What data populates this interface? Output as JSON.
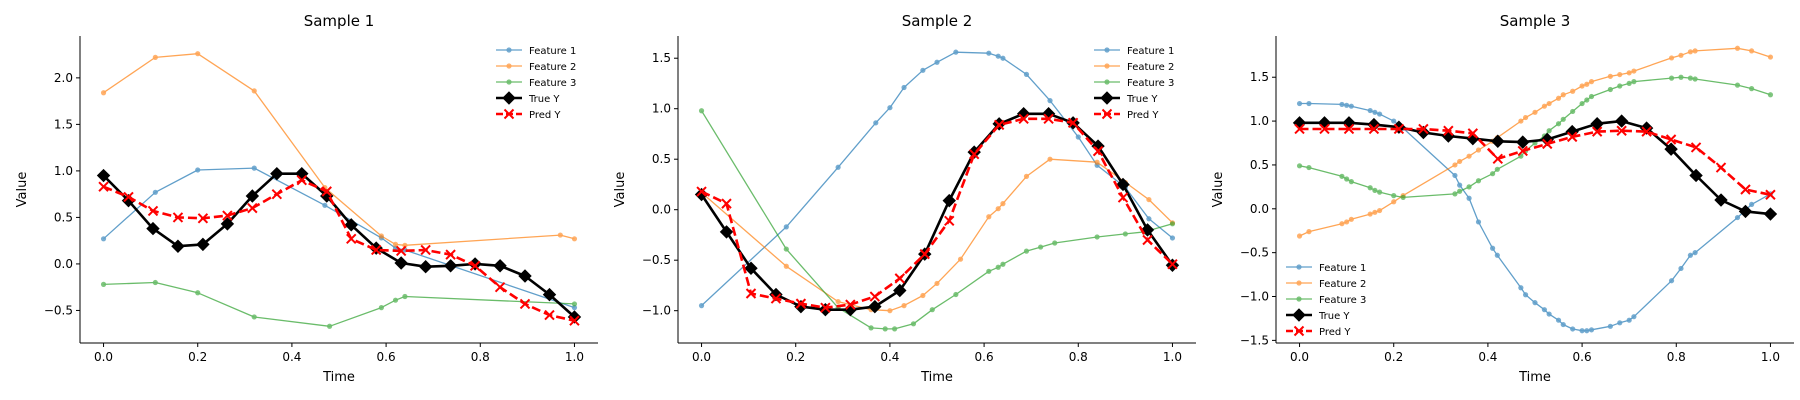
{
  "figure": {
    "width": 1800,
    "height": 400
  },
  "colors": {
    "feature1": "#1f77b4",
    "feature2": "#ff7f0e",
    "feature3": "#2ca02c",
    "true_y": "#000000",
    "pred_y": "#ff0000"
  },
  "chart_data": [
    {
      "type": "line",
      "title": "Sample 1",
      "xlabel": "Time",
      "ylabel": "Value",
      "xlim": [
        -0.05,
        1.05
      ],
      "ylim": [
        -0.85,
        2.45
      ],
      "xticks": [
        0.0,
        0.2,
        0.4,
        0.6,
        0.8,
        1.0
      ],
      "xtick_labels": [
        "0.0",
        "0.2",
        "0.4",
        "0.6",
        "0.8",
        "1.0"
      ],
      "yticks": [
        -0.5,
        0.0,
        0.5,
        1.0,
        1.5,
        2.0
      ],
      "ytick_labels": [
        "−0.5",
        "0.0",
        "0.5",
        "1.0",
        "1.5",
        "2.0"
      ],
      "legend_position": "top-right",
      "series": [
        {
          "name": "Feature 1",
          "role": "feature1",
          "x": [
            0.0,
            0.11,
            0.2,
            0.32,
            0.47,
            0.59,
            0.62,
            0.64,
            1.0
          ],
          "y": [
            0.27,
            0.77,
            1.01,
            1.03,
            0.63,
            0.28,
            0.17,
            0.15,
            -0.47
          ]
        },
        {
          "name": "Feature 2",
          "role": "feature2",
          "x": [
            0.0,
            0.11,
            0.2,
            0.32,
            0.47,
            0.59,
            0.62,
            0.64,
            0.97,
            1.0
          ],
          "y": [
            1.84,
            2.22,
            2.26,
            1.86,
            0.82,
            0.3,
            0.21,
            0.2,
            0.31,
            0.27
          ]
        },
        {
          "name": "Feature 3",
          "role": "feature3",
          "x": [
            0.0,
            0.11,
            0.2,
            0.32,
            0.48,
            0.59,
            0.62,
            0.64,
            1.0
          ],
          "y": [
            -0.22,
            -0.2,
            -0.31,
            -0.57,
            -0.67,
            -0.47,
            -0.39,
            -0.35,
            -0.43
          ]
        },
        {
          "name": "True Y",
          "role": "true_y",
          "x": [
            0.0,
            0.053,
            0.105,
            0.158,
            0.211,
            0.263,
            0.316,
            0.368,
            0.421,
            0.474,
            0.526,
            0.579,
            0.632,
            0.684,
            0.737,
            0.789,
            0.842,
            0.895,
            0.947,
            1.0
          ],
          "y": [
            0.95,
            0.68,
            0.38,
            0.19,
            0.21,
            0.43,
            0.73,
            0.97,
            0.97,
            0.73,
            0.42,
            0.17,
            0.01,
            -0.03,
            -0.02,
            0.0,
            -0.02,
            -0.13,
            -0.33,
            -0.57
          ]
        },
        {
          "name": "Pred Y",
          "role": "pred_y",
          "x": [
            0.0,
            0.053,
            0.105,
            0.158,
            0.211,
            0.263,
            0.316,
            0.368,
            0.421,
            0.474,
            0.526,
            0.579,
            0.632,
            0.684,
            0.737,
            0.789,
            0.842,
            0.895,
            0.947,
            1.0
          ],
          "y": [
            0.83,
            0.72,
            0.57,
            0.5,
            0.49,
            0.52,
            0.6,
            0.75,
            0.9,
            0.78,
            0.27,
            0.15,
            0.14,
            0.15,
            0.1,
            -0.02,
            -0.25,
            -0.43,
            -0.55,
            -0.61
          ]
        }
      ]
    },
    {
      "type": "line",
      "title": "Sample 2",
      "xlabel": "Time",
      "ylabel": "Value",
      "xlim": [
        -0.05,
        1.05
      ],
      "ylim": [
        -1.32,
        1.72
      ],
      "xticks": [
        0.0,
        0.2,
        0.4,
        0.6,
        0.8,
        1.0
      ],
      "xtick_labels": [
        "0.0",
        "0.2",
        "0.4",
        "0.6",
        "0.8",
        "1.0"
      ],
      "yticks": [
        -1.0,
        -0.5,
        0.0,
        0.5,
        1.0,
        1.5
      ],
      "ytick_labels": [
        "−1.0",
        "−0.5",
        "0.0",
        "0.5",
        "1.0",
        "1.5"
      ],
      "legend_position": "top-right",
      "series": [
        {
          "name": "Feature 1",
          "role": "feature1",
          "x": [
            0.0,
            0.18,
            0.29,
            0.37,
            0.4,
            0.43,
            0.47,
            0.5,
            0.54,
            0.61,
            0.63,
            0.64,
            0.69,
            0.74,
            0.8,
            0.84,
            0.9,
            0.95,
            1.0
          ],
          "y": [
            -0.95,
            -0.17,
            0.42,
            0.86,
            1.01,
            1.21,
            1.38,
            1.46,
            1.56,
            1.55,
            1.52,
            1.5,
            1.34,
            1.08,
            0.72,
            0.44,
            0.22,
            -0.09,
            -0.28
          ]
        },
        {
          "name": "Feature 2",
          "role": "feature2",
          "x": [
            0.0,
            0.18,
            0.29,
            0.36,
            0.4,
            0.43,
            0.47,
            0.5,
            0.55,
            0.61,
            0.63,
            0.64,
            0.69,
            0.74,
            0.84,
            0.9,
            0.95,
            1.0
          ],
          "y": [
            0.17,
            -0.56,
            -0.91,
            -0.99,
            -1.0,
            -0.95,
            -0.85,
            -0.73,
            -0.49,
            -0.07,
            0.01,
            0.06,
            0.33,
            0.5,
            0.47,
            0.27,
            0.1,
            -0.13
          ]
        },
        {
          "name": "Feature 3",
          "role": "feature3",
          "x": [
            0.0,
            0.18,
            0.29,
            0.36,
            0.39,
            0.41,
            0.45,
            0.49,
            0.54,
            0.61,
            0.63,
            0.64,
            0.69,
            0.72,
            0.75,
            0.84,
            0.9,
            0.94,
            1.0
          ],
          "y": [
            0.98,
            -0.39,
            -0.97,
            -1.17,
            -1.18,
            -1.18,
            -1.13,
            -0.99,
            -0.84,
            -0.61,
            -0.57,
            -0.54,
            -0.41,
            -0.37,
            -0.33,
            -0.27,
            -0.24,
            -0.22,
            -0.14
          ]
        },
        {
          "name": "True Y",
          "role": "true_y",
          "x": [
            0.0,
            0.053,
            0.105,
            0.158,
            0.211,
            0.263,
            0.316,
            0.368,
            0.421,
            0.474,
            0.526,
            0.579,
            0.632,
            0.684,
            0.737,
            0.789,
            0.842,
            0.895,
            0.947,
            1.0
          ],
          "y": [
            0.15,
            -0.22,
            -0.58,
            -0.84,
            -0.96,
            -0.99,
            -0.99,
            -0.96,
            -0.8,
            -0.44,
            0.09,
            0.57,
            0.85,
            0.95,
            0.95,
            0.86,
            0.63,
            0.25,
            -0.2,
            -0.55
          ]
        },
        {
          "name": "Pred Y",
          "role": "pred_y",
          "x": [
            0.0,
            0.053,
            0.105,
            0.158,
            0.211,
            0.263,
            0.316,
            0.368,
            0.421,
            0.474,
            0.526,
            0.579,
            0.632,
            0.684,
            0.737,
            0.789,
            0.842,
            0.895,
            0.947,
            1.0
          ],
          "y": [
            0.18,
            0.06,
            -0.83,
            -0.88,
            -0.93,
            -0.97,
            -0.94,
            -0.86,
            -0.68,
            -0.44,
            -0.11,
            0.55,
            0.84,
            0.9,
            0.9,
            0.86,
            0.58,
            0.12,
            -0.3,
            -0.54
          ]
        }
      ]
    },
    {
      "type": "line",
      "title": "Sample 3",
      "xlabel": "Time",
      "ylabel": "Value",
      "xlim": [
        -0.05,
        1.05
      ],
      "ylim": [
        -1.53,
        1.97
      ],
      "xticks": [
        0.0,
        0.2,
        0.4,
        0.6,
        0.8,
        1.0
      ],
      "xtick_labels": [
        "0.0",
        "0.2",
        "0.4",
        "0.6",
        "0.8",
        "1.0"
      ],
      "yticks": [
        -1.5,
        -1.0,
        -0.5,
        0.0,
        0.5,
        1.0,
        1.5
      ],
      "ytick_labels": [
        "−1.5",
        "−1.0",
        "−0.5",
        "0.0",
        "0.5",
        "1.0",
        "1.5"
      ],
      "legend_position": "bottom-left",
      "series": [
        {
          "name": "Feature 1",
          "role": "feature1",
          "x": [
            0.0,
            0.02,
            0.09,
            0.1,
            0.11,
            0.15,
            0.16,
            0.17,
            0.2,
            0.22,
            0.33,
            0.34,
            0.36,
            0.38,
            0.41,
            0.42,
            0.47,
            0.48,
            0.5,
            0.52,
            0.53,
            0.55,
            0.56,
            0.58,
            0.6,
            0.61,
            0.62,
            0.66,
            0.68,
            0.7,
            0.71,
            0.79,
            0.81,
            0.83,
            0.84,
            0.93,
            0.96,
            1.0
          ],
          "y": [
            1.2,
            1.2,
            1.19,
            1.18,
            1.17,
            1.12,
            1.1,
            1.08,
            1.0,
            0.92,
            0.38,
            0.27,
            0.12,
            -0.15,
            -0.45,
            -0.53,
            -0.9,
            -0.98,
            -1.07,
            -1.15,
            -1.2,
            -1.27,
            -1.32,
            -1.37,
            -1.39,
            -1.39,
            -1.38,
            -1.34,
            -1.3,
            -1.27,
            -1.23,
            -0.82,
            -0.68,
            -0.53,
            -0.5,
            -0.1,
            0.05,
            0.17
          ]
        },
        {
          "name": "Feature 2",
          "role": "feature2",
          "x": [
            0.0,
            0.02,
            0.09,
            0.1,
            0.11,
            0.15,
            0.16,
            0.17,
            0.2,
            0.22,
            0.33,
            0.34,
            0.36,
            0.38,
            0.41,
            0.42,
            0.47,
            0.48,
            0.5,
            0.52,
            0.53,
            0.55,
            0.56,
            0.58,
            0.6,
            0.61,
            0.62,
            0.66,
            0.68,
            0.7,
            0.71,
            0.79,
            0.81,
            0.83,
            0.84,
            0.93,
            0.96,
            1.0
          ],
          "y": [
            -0.31,
            -0.26,
            -0.17,
            -0.15,
            -0.12,
            -0.06,
            -0.04,
            -0.02,
            0.08,
            0.15,
            0.5,
            0.54,
            0.6,
            0.67,
            0.77,
            0.81,
            1.0,
            1.04,
            1.1,
            1.17,
            1.2,
            1.26,
            1.3,
            1.34,
            1.4,
            1.42,
            1.45,
            1.51,
            1.53,
            1.55,
            1.57,
            1.72,
            1.75,
            1.79,
            1.8,
            1.83,
            1.8,
            1.73
          ]
        },
        {
          "name": "Feature 3",
          "role": "feature3",
          "x": [
            0.0,
            0.02,
            0.09,
            0.1,
            0.11,
            0.15,
            0.16,
            0.17,
            0.2,
            0.22,
            0.33,
            0.34,
            0.36,
            0.38,
            0.41,
            0.42,
            0.47,
            0.48,
            0.5,
            0.52,
            0.53,
            0.55,
            0.56,
            0.58,
            0.6,
            0.61,
            0.62,
            0.66,
            0.68,
            0.7,
            0.71,
            0.79,
            0.81,
            0.83,
            0.84,
            0.93,
            0.96,
            1.0
          ],
          "y": [
            0.49,
            0.47,
            0.37,
            0.34,
            0.31,
            0.24,
            0.21,
            0.19,
            0.15,
            0.13,
            0.17,
            0.2,
            0.25,
            0.32,
            0.4,
            0.45,
            0.6,
            0.66,
            0.75,
            0.83,
            0.89,
            0.97,
            1.02,
            1.11,
            1.2,
            1.24,
            1.28,
            1.36,
            1.4,
            1.43,
            1.45,
            1.49,
            1.5,
            1.49,
            1.48,
            1.41,
            1.37,
            1.3
          ]
        },
        {
          "name": "True Y",
          "role": "true_y",
          "x": [
            0.0,
            0.053,
            0.105,
            0.158,
            0.211,
            0.263,
            0.316,
            0.368,
            0.421,
            0.474,
            0.526,
            0.579,
            0.632,
            0.684,
            0.737,
            0.789,
            0.842,
            0.895,
            0.947,
            1.0
          ],
          "y": [
            0.98,
            0.98,
            0.98,
            0.96,
            0.93,
            0.87,
            0.83,
            0.8,
            0.77,
            0.76,
            0.79,
            0.88,
            0.97,
            1.0,
            0.92,
            0.68,
            0.38,
            0.1,
            -0.03,
            -0.06
          ]
        },
        {
          "name": "Pred Y",
          "role": "pred_y",
          "x": [
            0.0,
            0.053,
            0.105,
            0.158,
            0.211,
            0.263,
            0.316,
            0.368,
            0.421,
            0.474,
            0.526,
            0.579,
            0.632,
            0.684,
            0.737,
            0.789,
            0.842,
            0.895,
            0.947,
            1.0
          ],
          "y": [
            0.91,
            0.91,
            0.91,
            0.91,
            0.91,
            0.91,
            0.89,
            0.86,
            0.57,
            0.66,
            0.74,
            0.82,
            0.88,
            0.89,
            0.88,
            0.79,
            0.7,
            0.47,
            0.22,
            0.16
          ]
        }
      ]
    }
  ]
}
